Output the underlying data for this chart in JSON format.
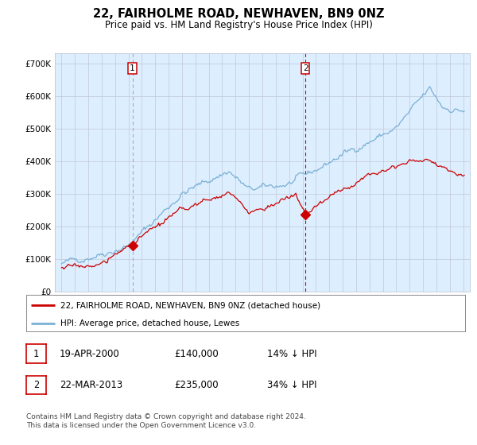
{
  "title": "22, FAIRHOLME ROAD, NEWHAVEN, BN9 0NZ",
  "subtitle": "Price paid vs. HM Land Registry's House Price Index (HPI)",
  "legend_line1": "22, FAIRHOLME ROAD, NEWHAVEN, BN9 0NZ (detached house)",
  "legend_line2": "HPI: Average price, detached house, Lewes",
  "footnote": "Contains HM Land Registry data © Crown copyright and database right 2024.\nThis data is licensed under the Open Government Licence v3.0.",
  "sale1_date": "19-APR-2000",
  "sale1_price": 140000,
  "sale1_pct": "14% ↓ HPI",
  "sale2_date": "22-MAR-2013",
  "sale2_price": 235000,
  "sale2_pct": "34% ↓ HPI",
  "red_line_color": "#cc0000",
  "blue_line_color": "#7ab0d4",
  "background_color": "#ffffff",
  "plot_bg_color": "#ddeeff",
  "grid_color": "#c0c8d8",
  "vline1_color": "#aaaaaa",
  "vline2_color": "#cc0000",
  "ylim_min": 0,
  "ylim_max": 730000,
  "xlim_min": 1994.5,
  "xlim_max": 2025.5,
  "yticks": [
    0,
    100000,
    200000,
    300000,
    400000,
    500000,
    600000,
    700000
  ],
  "ytick_labels": [
    "£0",
    "£100K",
    "£200K",
    "£300K",
    "£400K",
    "£500K",
    "£600K",
    "£700K"
  ],
  "xticks": [
    1995,
    1996,
    1997,
    1998,
    1999,
    2000,
    2001,
    2002,
    2003,
    2004,
    2005,
    2006,
    2007,
    2008,
    2009,
    2010,
    2011,
    2012,
    2013,
    2014,
    2015,
    2016,
    2017,
    2018,
    2019,
    2020,
    2021,
    2022,
    2023,
    2024,
    2025
  ],
  "sale1_x": 2000.292,
  "sale1_y": 140000,
  "sale2_x": 2013.208,
  "sale2_y": 235000
}
